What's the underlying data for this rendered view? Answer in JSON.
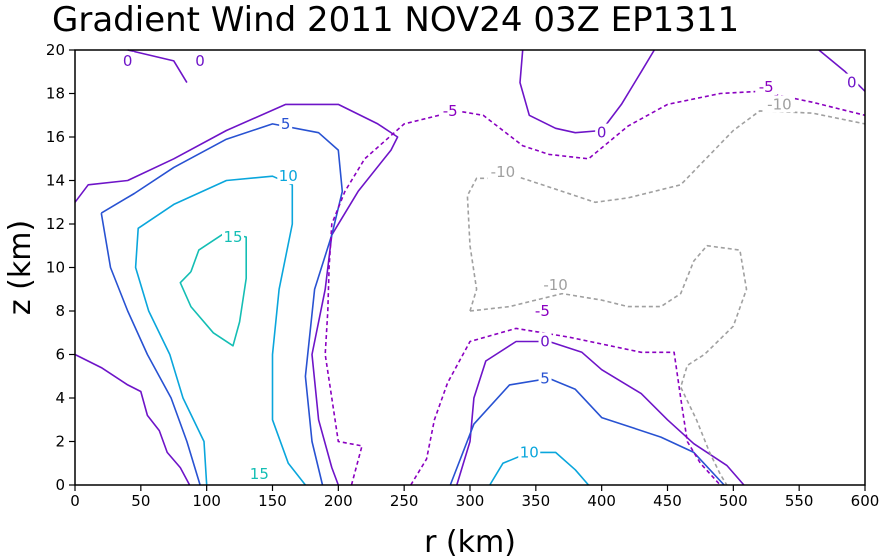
{
  "chart_data": {
    "type": "contour",
    "title": "Gradient Wind 2011 NOV24 03Z  EP1311",
    "xlabel": "r (km)",
    "ylabel": "z (km)",
    "xlim": [
      0,
      600
    ],
    "ylim": [
      0,
      20
    ],
    "x_ticks": [
      "0",
      "50",
      "100",
      "150",
      "200",
      "250",
      "300",
      "350",
      "400",
      "450",
      "500",
      "550",
      "600"
    ],
    "y_ticks": [
      "0",
      "2",
      "4",
      "6",
      "8",
      "10",
      "12",
      "14",
      "16",
      "18",
      "20"
    ],
    "grid": false,
    "levels": [
      {
        "level": -10,
        "color": "#a0a0a0",
        "dash": true
      },
      {
        "level": -5,
        "color": "#8a00c0",
        "dash": true
      },
      {
        "level": 0,
        "color": "#6e14c8",
        "dash": false
      },
      {
        "level": 5,
        "color": "#2852d2",
        "dash": false
      },
      {
        "level": 10,
        "color": "#0aa6dc",
        "dash": false
      },
      {
        "level": 15,
        "color": "#14beb4",
        "dash": false
      }
    ],
    "contours": [
      {
        "level": 0,
        "points": [
          [
            0,
            13
          ],
          [
            10,
            13.8
          ],
          [
            40,
            14
          ],
          [
            75,
            15
          ],
          [
            115,
            16.3
          ],
          [
            160,
            17.5
          ],
          [
            200,
            17.5
          ],
          [
            230,
            16.6
          ],
          [
            245,
            16
          ],
          [
            240,
            15.4
          ],
          [
            215,
            13.5
          ],
          [
            195,
            11.5
          ],
          [
            190,
            9
          ],
          [
            180,
            6
          ],
          [
            185,
            3
          ],
          [
            195,
            0.8
          ],
          [
            200,
            0
          ]
        ]
      },
      {
        "level": 0,
        "points": [
          [
            0,
            6
          ],
          [
            20,
            5.4
          ],
          [
            40,
            4.6
          ],
          [
            50,
            4.3
          ],
          [
            55,
            3.2
          ],
          [
            64,
            2.5
          ],
          [
            70,
            1.5
          ],
          [
            80,
            0.8
          ],
          [
            87,
            0
          ]
        ]
      },
      {
        "level": 0,
        "points": [
          [
            40,
            20
          ],
          [
            75,
            19.5
          ],
          [
            85,
            18.5
          ]
        ]
      },
      {
        "level": 0,
        "points": [
          [
            340,
            20
          ],
          [
            338,
            18.5
          ],
          [
            345,
            17
          ],
          [
            365,
            16.4
          ],
          [
            380,
            16.2
          ],
          [
            400,
            16.3
          ],
          [
            415,
            17.5
          ],
          [
            430,
            19
          ],
          [
            440,
            20
          ]
        ]
      },
      {
        "level": 0,
        "points": [
          [
            565,
            20
          ],
          [
            585,
            19
          ],
          [
            600,
            18.1
          ]
        ]
      },
      {
        "level": 0,
        "points": [
          [
            290,
            0
          ],
          [
            300,
            2
          ],
          [
            303,
            4
          ],
          [
            312,
            5.7
          ],
          [
            335,
            6.6
          ],
          [
            360,
            6.6
          ],
          [
            385,
            6.1
          ],
          [
            400,
            5.3
          ],
          [
            430,
            4.2
          ],
          [
            450,
            3
          ],
          [
            470,
            1.9
          ],
          [
            495,
            0.9
          ],
          [
            508,
            0
          ]
        ]
      },
      {
        "level": 5,
        "points": [
          [
            20,
            12.5
          ],
          [
            45,
            13.4
          ],
          [
            75,
            14.6
          ],
          [
            115,
            15.9
          ],
          [
            150,
            16.6
          ],
          [
            185,
            16.2
          ],
          [
            200,
            15.4
          ],
          [
            203,
            13.5
          ],
          [
            195,
            11.5
          ],
          [
            182,
            9
          ],
          [
            175,
            5
          ],
          [
            180,
            2
          ],
          [
            188,
            0
          ]
        ]
      },
      {
        "level": 5,
        "points": [
          [
            95,
            0
          ],
          [
            85,
            2
          ],
          [
            73,
            4
          ],
          [
            55,
            6
          ],
          [
            40,
            8
          ],
          [
            27,
            10
          ],
          [
            20,
            12.5
          ]
        ]
      },
      {
        "level": 5,
        "points": [
          [
            285,
            0
          ],
          [
            303,
            2.8
          ],
          [
            330,
            4.6
          ],
          [
            360,
            4.9
          ],
          [
            380,
            4.4
          ],
          [
            400,
            3.1
          ],
          [
            425,
            2.6
          ],
          [
            445,
            2.2
          ],
          [
            470,
            1.5
          ],
          [
            493,
            0
          ]
        ]
      },
      {
        "level": 10,
        "points": [
          [
            100,
            0
          ],
          [
            98,
            2
          ],
          [
            82,
            4
          ],
          [
            72,
            6
          ],
          [
            56,
            8
          ],
          [
            46,
            10
          ],
          [
            48,
            11.8
          ],
          [
            75,
            12.9
          ],
          [
            115,
            14
          ],
          [
            150,
            14.2
          ],
          [
            165,
            13.8
          ],
          [
            165,
            12
          ],
          [
            155,
            9
          ],
          [
            150,
            6
          ],
          [
            150,
            3
          ],
          [
            162,
            1
          ],
          [
            175,
            0
          ]
        ]
      },
      {
        "level": 10,
        "points": [
          [
            315,
            0
          ],
          [
            325,
            1
          ],
          [
            345,
            1.5
          ],
          [
            365,
            1.5
          ],
          [
            380,
            0.7
          ],
          [
            390,
            0
          ]
        ]
      },
      {
        "level": 15,
        "points": [
          [
            88,
            9.8
          ],
          [
            94,
            10.8
          ],
          [
            114,
            11.6
          ],
          [
            130,
            11.4
          ],
          [
            130,
            9.5
          ],
          [
            125,
            7.5
          ],
          [
            120,
            6.4
          ],
          [
            105,
            7
          ],
          [
            88,
            8.2
          ],
          [
            80,
            9.3
          ],
          [
            88,
            9.8
          ]
        ]
      },
      {
        "level": -5,
        "points": [
          [
            210,
            0
          ],
          [
            218,
            1.8
          ],
          [
            200,
            2
          ],
          [
            195,
            4
          ],
          [
            190,
            6
          ],
          [
            192,
            8
          ],
          [
            193,
            10
          ],
          [
            195,
            12
          ],
          [
            205,
            13.5
          ],
          [
            220,
            15
          ],
          [
            250,
            16.6
          ],
          [
            290,
            17.2
          ],
          [
            310,
            17
          ],
          [
            340,
            15.6
          ],
          [
            360,
            15.2
          ],
          [
            390,
            15
          ],
          [
            420,
            16.5
          ],
          [
            450,
            17.5
          ],
          [
            490,
            18
          ],
          [
            520,
            18.1
          ],
          [
            560,
            17.6
          ],
          [
            600,
            17
          ]
        ]
      },
      {
        "level": -5,
        "points": [
          [
            255,
            0
          ],
          [
            267,
            1.2
          ],
          [
            273,
            3
          ],
          [
            283,
            4.7
          ],
          [
            300,
            6.6
          ],
          [
            335,
            7.2
          ],
          [
            375,
            6.8
          ],
          [
            430,
            6.1
          ],
          [
            455,
            6.1
          ],
          [
            460,
            4
          ],
          [
            465,
            2
          ],
          [
            475,
            1
          ],
          [
            490,
            0
          ]
        ]
      },
      {
        "level": -10,
        "points": [
          [
            300,
            8
          ],
          [
            305,
            9
          ],
          [
            300,
            11
          ],
          [
            298,
            13.3
          ],
          [
            305,
            14.1
          ],
          [
            320,
            14.1
          ],
          [
            330,
            14.3
          ],
          [
            345,
            14
          ],
          [
            380,
            13.3
          ],
          [
            395,
            13
          ],
          [
            420,
            13.2
          ],
          [
            460,
            13.8
          ],
          [
            500,
            16.3
          ],
          [
            520,
            17.2
          ],
          [
            560,
            17.1
          ],
          [
            600,
            16.6
          ]
        ]
      },
      {
        "level": -10,
        "points": [
          [
            300,
            8
          ],
          [
            330,
            8.2
          ],
          [
            370,
            8.8
          ],
          [
            400,
            8.5
          ],
          [
            420,
            8.2
          ],
          [
            445,
            8.2
          ],
          [
            460,
            8.8
          ],
          [
            470,
            10.3
          ],
          [
            480,
            11
          ],
          [
            505,
            10.8
          ],
          [
            510,
            9
          ],
          [
            500,
            7.3
          ],
          [
            478,
            6
          ],
          [
            465,
            5.5
          ],
          [
            460,
            4.5
          ],
          [
            472,
            3
          ],
          [
            482,
            1.5
          ],
          [
            490,
            0.5
          ],
          [
            495,
            0
          ]
        ]
      }
    ],
    "contour_labels": [
      {
        "text": "0",
        "x": 95,
        "y": 19.5,
        "level": 0
      },
      {
        "text": "0",
        "x": 40,
        "y": 19.5,
        "level": 0
      },
      {
        "text": "0",
        "x": 400,
        "y": 16.2,
        "level": 0
      },
      {
        "text": "0",
        "x": 590,
        "y": 18.5,
        "level": 0
      },
      {
        "text": "0",
        "x": 357,
        "y": 6.6,
        "level": 0
      },
      {
        "text": "5",
        "x": 160,
        "y": 16.6,
        "level": 5
      },
      {
        "text": "5",
        "x": 357,
        "y": 4.9,
        "level": 5
      },
      {
        "text": "10",
        "x": 162,
        "y": 14.2,
        "level": 10
      },
      {
        "text": "10",
        "x": 345,
        "y": 1.5,
        "level": 10
      },
      {
        "text": "15",
        "x": 120,
        "y": 11.4,
        "level": 15
      },
      {
        "text": "15",
        "x": 140,
        "y": 0.5,
        "level": 15
      },
      {
        "text": "-5",
        "x": 285,
        "y": 17.2,
        "level": -5
      },
      {
        "text": "-5",
        "x": 525,
        "y": 18.3,
        "level": -5
      },
      {
        "text": "-5",
        "x": 355,
        "y": 8.0,
        "level": -5
      },
      {
        "text": "-10",
        "x": 325,
        "y": 14.4,
        "level": -10
      },
      {
        "text": "-10",
        "x": 535,
        "y": 17.5,
        "level": -10
      },
      {
        "text": "-10",
        "x": 365,
        "y": 9.2,
        "level": -10
      }
    ]
  }
}
